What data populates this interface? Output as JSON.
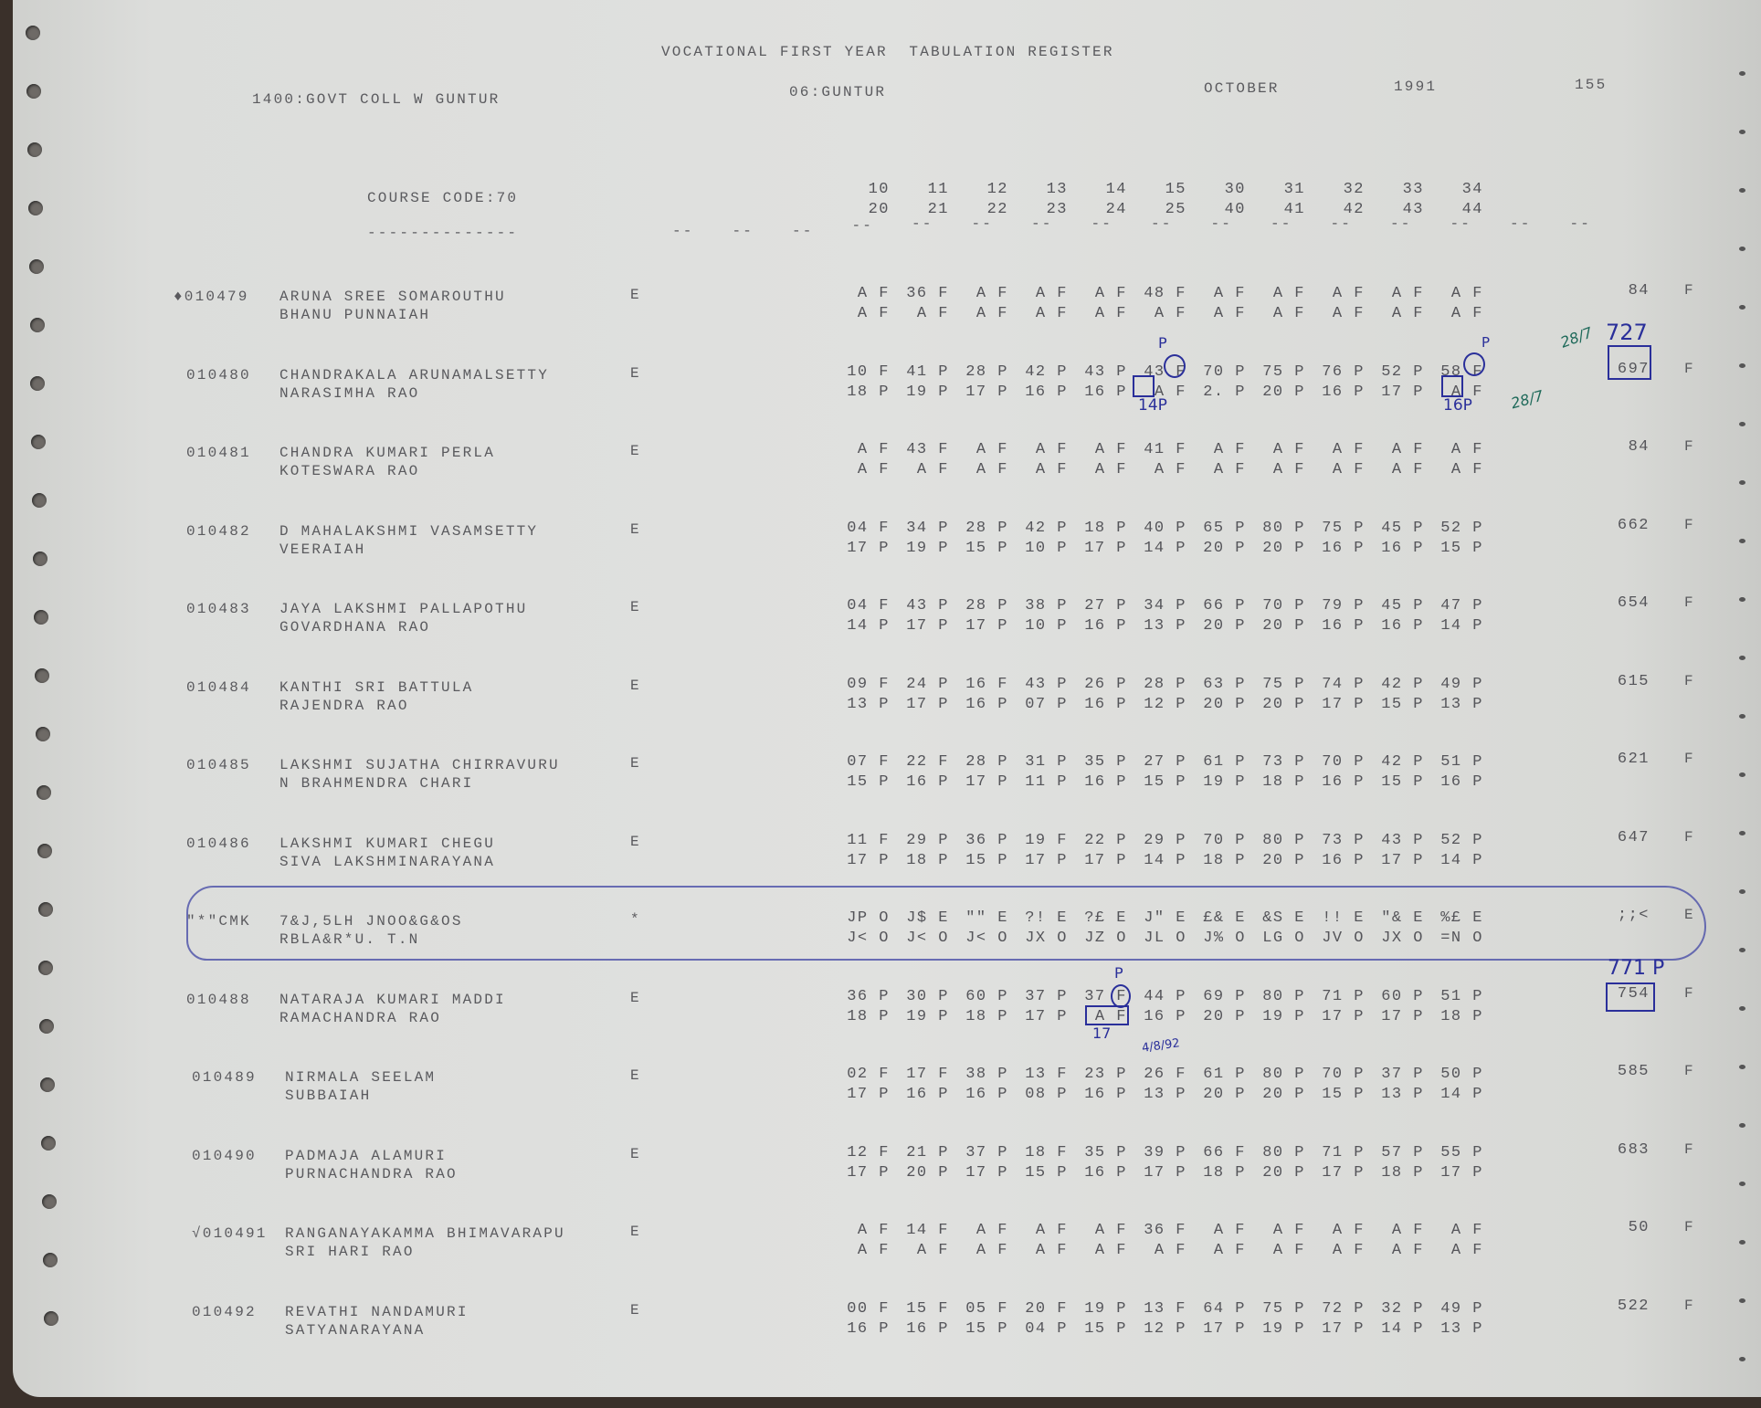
{
  "header": {
    "title": "VOCATIONAL FIRST YEAR  TABULATION REGISTER",
    "college": "1400:GOVT COLL W GUNTUR",
    "district": "06:GUNTUR",
    "month": "OCTOBER",
    "year": "1991",
    "page": "155",
    "course_code": "COURSE CODE:70",
    "course_underline": "--------------",
    "subject_codes_top": [
      "10",
      "11",
      "12",
      "13",
      "14",
      "15",
      "30",
      "31",
      "32",
      "33",
      "34"
    ],
    "subject_codes_bottom": [
      "20",
      "21",
      "22",
      "23",
      "24",
      "25",
      "40",
      "41",
      "42",
      "43",
      "44"
    ],
    "dash_marks": [
      "--",
      "--",
      "--",
      "--",
      "--",
      "--",
      "--",
      "--",
      "--",
      "--",
      "--",
      "--",
      "--",
      "--",
      "--",
      "--"
    ]
  },
  "rows": [
    {
      "id": "♦010479",
      "name": "ARUNA SREE SOMAROUTHU",
      "parent": "BHANU PUNNAIAH",
      "code": "E",
      "line1": [
        "A F",
        "36 F",
        "A F",
        "A F",
        "A F",
        "48 F",
        "A F",
        "A F",
        "A F",
        "A F",
        "A F"
      ],
      "line2": [
        "A F",
        "A F",
        "A F",
        "A F",
        "A F",
        "A F",
        "A F",
        "A F",
        "A F",
        "A F",
        "A F"
      ],
      "total": "84",
      "result": "F"
    },
    {
      "id": "010480",
      "name": "CHANDRAKALA ARUNAMALSETTY",
      "parent": "NARASIMHA RAO",
      "code": "E",
      "line1": [
        "10 F",
        "41 P",
        "28 P",
        "42 P",
        "43 P",
        "43 F",
        "70 P",
        "75 P",
        "76 P",
        "52 P",
        "58 F"
      ],
      "line2": [
        "18 P",
        "19 P",
        "17 P",
        "16 P",
        "16 P",
        "A F",
        "2. P",
        "20 P",
        "16 P",
        "17 P",
        "A F"
      ],
      "total": "697",
      "result": "F"
    },
    {
      "id": "010481",
      "name": "CHANDRA KUMARI PERLA",
      "parent": "KOTESWARA RAO",
      "code": "E",
      "line1": [
        "A F",
        "43 F",
        "A F",
        "A F",
        "A F",
        "41 F",
        "A F",
        "A F",
        "A F",
        "A F",
        "A F"
      ],
      "line2": [
        "A F",
        "A F",
        "A F",
        "A F",
        "A F",
        "A F",
        "A F",
        "A F",
        "A F",
        "A F",
        "A F"
      ],
      "total": "84",
      "result": "F"
    },
    {
      "id": "010482",
      "name": "D MAHALAKSHMI VASAMSETTY",
      "parent": "VEERAIAH",
      "code": "E",
      "line1": [
        "04 F",
        "34 P",
        "28 P",
        "42 P",
        "18 P",
        "40 P",
        "65 P",
        "80 P",
        "75 P",
        "45 P",
        "52 P"
      ],
      "line2": [
        "17 P",
        "19 P",
        "15 P",
        "10 P",
        "17 P",
        "14 P",
        "20 P",
        "20 P",
        "16 P",
        "16 P",
        "15 P"
      ],
      "total": "662",
      "result": "F"
    },
    {
      "id": "010483",
      "name": "JAYA LAKSHMI PALLAPOTHU",
      "parent": "GOVARDHANA RAO",
      "code": "E",
      "line1": [
        "04 F",
        "43 P",
        "28 P",
        "38 P",
        "27 P",
        "34 P",
        "66 P",
        "70 P",
        "79 P",
        "45 P",
        "47 P"
      ],
      "line2": [
        "14 P",
        "17 P",
        "17 P",
        "10 P",
        "16 P",
        "13 P",
        "20 P",
        "20 P",
        "16 P",
        "16 P",
        "14 P"
      ],
      "total": "654",
      "result": "F"
    },
    {
      "id": "010484",
      "name": "KANTHI SRI BATTULA",
      "parent": "RAJENDRA RAO",
      "code": "E",
      "line1": [
        "09 F",
        "24 P",
        "16 F",
        "43 P",
        "26 P",
        "28 P",
        "63 P",
        "75 P",
        "74 P",
        "42 P",
        "49 P"
      ],
      "line2": [
        "13 P",
        "17 P",
        "16 P",
        "07 P",
        "16 P",
        "12 P",
        "20 P",
        "20 P",
        "17 P",
        "15 P",
        "13 P"
      ],
      "total": "615",
      "result": "F"
    },
    {
      "id": "010485",
      "name": "LAKSHMI SUJATHA CHIRRAVURU",
      "parent": "N BRAHMENDRA CHARI",
      "code": "E",
      "line1": [
        "07 F",
        "22 F",
        "28 P",
        "31 P",
        "35 P",
        "27 P",
        "61 P",
        "73 P",
        "70 P",
        "42 P",
        "51 P"
      ],
      "line2": [
        "15 P",
        "16 P",
        "17 P",
        "11 P",
        "16 P",
        "15 P",
        "19 P",
        "18 P",
        "16 P",
        "15 P",
        "16 P"
      ],
      "total": "621",
      "result": "F"
    },
    {
      "id": "010486",
      "name": "LAKSHMI KUMARI CHEGU",
      "parent": "SIVA LAKSHMINARAYANA",
      "code": "E",
      "line1": [
        "11 F",
        "29 P",
        "36 P",
        "19 F",
        "22 P",
        "29 P",
        "70 P",
        "80 P",
        "73 P",
        "43 P",
        "52 P"
      ],
      "line2": [
        "17 P",
        "18 P",
        "15 P",
        "17 P",
        "17 P",
        "14 P",
        "18 P",
        "20 P",
        "16 P",
        "17 P",
        "14 P"
      ],
      "total": "647",
      "result": "F"
    },
    {
      "id": "\"*\"CMK",
      "name": "7&J,5LH JNOO&G&OS",
      "parent": "RBLA&R*U. T.N",
      "code": "*",
      "line1": [
        "JP O",
        "J$ E",
        "\"\" E",
        "?! E",
        "?£ E",
        "J\" E",
        "£& E",
        "&S E",
        "!! E",
        "\"& E",
        "%£ E"
      ],
      "line2": [
        "J< O",
        "J< O",
        "J< O",
        "JX O",
        "JZ O",
        "JL O",
        "J% O",
        "LG O",
        "JV O",
        "JX O",
        "=N O"
      ],
      "total": ";;<",
      "result": "E"
    },
    {
      "id": "010488",
      "name": "NATARAJA KUMARI MADDI",
      "parent": "RAMACHANDRA RAO",
      "code": "E",
      "line1": [
        "36 P",
        "30 P",
        "60 P",
        "37 P",
        "37 F",
        "44 P",
        "69 P",
        "80 P",
        "71 P",
        "60 P",
        "51 P"
      ],
      "line2": [
        "18 P",
        "19 P",
        "18 P",
        "17 P",
        "A F",
        "16 P",
        "20 P",
        "19 P",
        "17 P",
        "17 P",
        "18 P"
      ],
      "total": "754",
      "result": "F"
    },
    {
      "id": "010489",
      "name": "NIRMALA SEELAM",
      "parent": "SUBBAIAH",
      "code": "E",
      "line1": [
        "02 F",
        "17 F",
        "38 P",
        "13 F",
        "23 P",
        "26 F",
        "61 P",
        "80 P",
        "70 P",
        "37 P",
        "50 P"
      ],
      "line2": [
        "17 P",
        "16 P",
        "16 P",
        "08 P",
        "16 P",
        "13 P",
        "20 P",
        "20 P",
        "15 P",
        "13 P",
        "14 P"
      ],
      "total": "585",
      "result": "F"
    },
    {
      "id": "010490",
      "name": "PADMAJA ALAMURI",
      "parent": "PURNACHANDRA RAO",
      "code": "E",
      "line1": [
        "12 F",
        "21 P",
        "37 P",
        "18 F",
        "35 P",
        "39 P",
        "66 F",
        "80 P",
        "71 P",
        "57 P",
        "55 P"
      ],
      "line2": [
        "17 P",
        "20 P",
        "17 P",
        "15 P",
        "16 P",
        "17 P",
        "18 P",
        "20 P",
        "17 P",
        "18 P",
        "17 P"
      ],
      "total": "683",
      "result": "F"
    },
    {
      "id": "√010491",
      "name": "RANGANAYAKAMMA BHIMAVARAPU",
      "parent": "SRI HARI RAO",
      "code": "E",
      "line1": [
        "A F",
        "14 F",
        "A F",
        "A F",
        "A F",
        "36 F",
        "A F",
        "A F",
        "A F",
        "A F",
        "A F"
      ],
      "line2": [
        "A F",
        "A F",
        "A F",
        "A F",
        "A F",
        "A F",
        "A F",
        "A F",
        "A F",
        "A F",
        "A F"
      ],
      "total": "50",
      "result": "F"
    },
    {
      "id": "010492",
      "name": "REVATHI NANDAMURI",
      "parent": "SATYANARAYANA",
      "code": "E",
      "line1": [
        "00 F",
        "15 F",
        "05 F",
        "20 F",
        "19 P",
        "13 F",
        "64 P",
        "75 P",
        "72 P",
        "32 P",
        "49 P"
      ],
      "line2": [
        "16 P",
        "16 P",
        "15 P",
        "04 P",
        "15 P",
        "12 P",
        "17 P",
        "19 P",
        "17 P",
        "14 P",
        "13 P"
      ],
      "total": "522",
      "result": "F"
    }
  ],
  "annotations": {
    "r2_p_above": "P",
    "r2_14p": "14P",
    "r2_16p": "16P",
    "r2_p2": "P",
    "r2_new_total": "727",
    "r2_date1": "28/7",
    "r2_date2": "28/7",
    "r10_p_above": "P",
    "r10_17": "17",
    "r10_new_total": "771 P",
    "r10_date": "4/8/92"
  },
  "colors": {
    "ink": "#2a2f9a",
    "green_ink": "#1f6a5a",
    "print": "#55555a",
    "paper": "#e0e1df"
  }
}
